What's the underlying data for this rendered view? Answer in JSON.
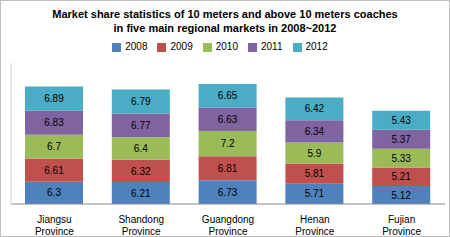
{
  "chart_data": {
    "type": "bar",
    "title": "Market share statistics of 10 meters and above 10 meters coaches\nin five main regional markets in 2008~2012",
    "categories": [
      "Jiangsu Province",
      "Shandong Province",
      "Guangdong Province",
      "Henan Province",
      "Fujian Province"
    ],
    "series": [
      {
        "name": "2008",
        "color": "#4f81bd",
        "values": [
          6.3,
          6.21,
          6.73,
          5.71,
          5.12
        ]
      },
      {
        "name": "2009",
        "color": "#c0504d",
        "values": [
          6.61,
          6.32,
          6.81,
          5.81,
          5.21
        ]
      },
      {
        "name": "2010",
        "color": "#9bbb59",
        "values": [
          6.7,
          6.4,
          7.2,
          5.9,
          5.33
        ]
      },
      {
        "name": "2011",
        "color": "#8064a2",
        "values": [
          6.83,
          6.77,
          6.63,
          6.34,
          5.37
        ]
      },
      {
        "name": "2012",
        "color": "#4bacc6",
        "values": [
          6.89,
          6.79,
          6.65,
          6.42,
          5.43
        ]
      }
    ],
    "ylim": [
      0,
      40
    ],
    "stacked": true,
    "data_labels": true,
    "legend": "top",
    "tick_labels": "x",
    "grid": false
  }
}
